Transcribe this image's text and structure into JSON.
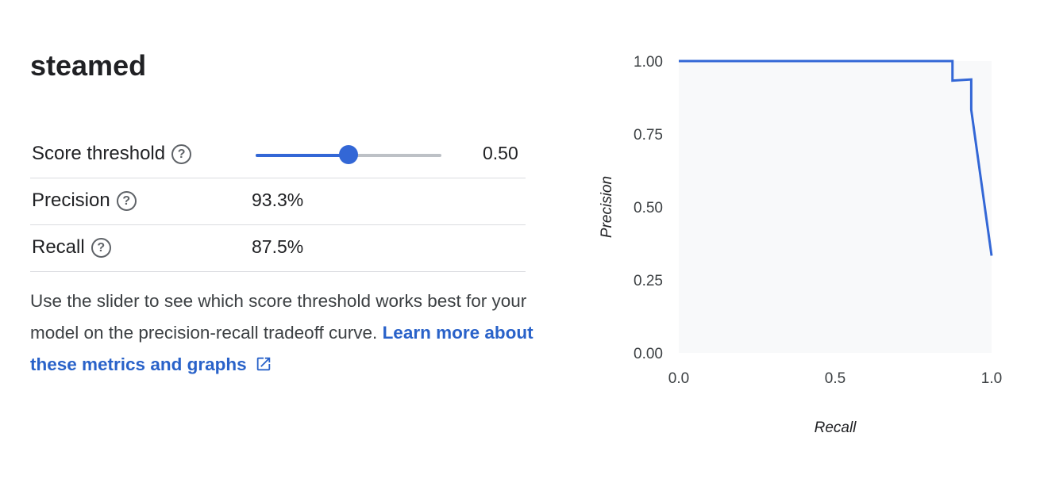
{
  "title": "steamed",
  "metrics": {
    "score_threshold": {
      "label": "Score threshold",
      "value": "0.50",
      "slider_fraction": 0.5,
      "help_icon": "help-circle-icon"
    },
    "precision": {
      "label": "Precision",
      "value": "93.3%",
      "help_icon": "help-circle-icon"
    },
    "recall": {
      "label": "Recall",
      "value": "87.5%",
      "help_icon": "help-circle-icon"
    }
  },
  "description": {
    "text": "Use the slider to see which score threshold works best for your model on the precision-recall tradeoff curve. ",
    "link_text": "Learn more about these metrics and graphs",
    "link_icon": "open-in-new-icon"
  },
  "colors": {
    "accent": "#3367d6",
    "link": "#2962c9",
    "track": "#bdc1c6",
    "plot_bg": "#f8f9fa"
  },
  "chart_data": {
    "type": "line",
    "title": "",
    "xlabel": "Recall",
    "ylabel": "Precision",
    "xlim": [
      0,
      1
    ],
    "ylim": [
      0,
      1
    ],
    "x_ticks": [
      "0.0",
      "0.5",
      "1.0"
    ],
    "y_ticks": [
      "1.00",
      "0.75",
      "0.50",
      "0.25",
      "0.00"
    ],
    "grid": false,
    "series": [
      {
        "x": [
          0.0,
          0.875,
          0.875,
          0.935,
          0.935,
          1.0
        ],
        "y": [
          1.0,
          1.0,
          0.933,
          0.937,
          0.833,
          0.333
        ]
      }
    ]
  }
}
